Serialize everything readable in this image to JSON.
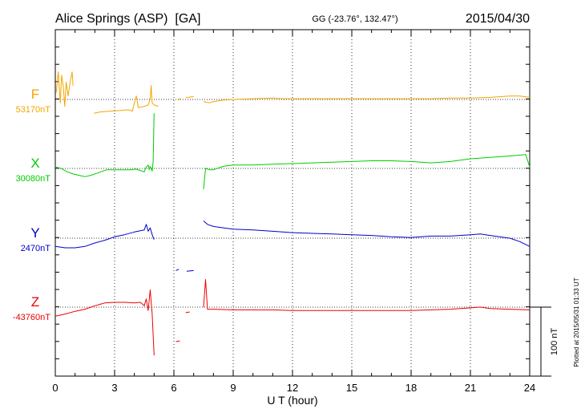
{
  "title": "Alice Springs (ASP)  [GA]",
  "coords": "GG (-23.76°, 132.47°)",
  "date": "2015/04/30",
  "plotted_note": "Plotted at 2015/05/31 01:33 UT",
  "chart_data": {
    "type": "line",
    "xlabel": "U T (hour)",
    "xlim": [
      0,
      24
    ],
    "xticks": [
      0,
      3,
      6,
      9,
      12,
      15,
      18,
      21,
      24
    ],
    "scale_bar_label": "100 nT",
    "grid": true,
    "series": [
      {
        "name": "F",
        "baseline_label": "53170nT",
        "color": "#f2a600",
        "segments": [
          [
            [
              0.05,
              10
            ],
            [
              0.15,
              40
            ],
            [
              0.25,
              -5
            ],
            [
              0.32,
              35
            ],
            [
              0.4,
              20
            ],
            [
              0.48,
              -10
            ],
            [
              0.55,
              25
            ],
            [
              0.65,
              5
            ],
            [
              0.75,
              25
            ],
            [
              0.85,
              40
            ],
            [
              0.9,
              20
            ]
          ],
          [
            [
              1.95,
              -20
            ],
            [
              2.3,
              -18
            ],
            [
              2.8,
              -17
            ],
            [
              3.3,
              -16
            ],
            [
              3.7,
              -15
            ],
            [
              3.9,
              -17
            ],
            [
              4.0,
              -5
            ],
            [
              4.1,
              5
            ],
            [
              4.2,
              -12
            ],
            [
              4.5,
              -10
            ],
            [
              4.7,
              -8
            ],
            [
              4.8,
              0
            ],
            [
              4.85,
              20
            ],
            [
              4.9,
              -5
            ],
            [
              5.0,
              -8
            ],
            [
              5.2,
              -10
            ]
          ],
          [
            [
              6.2,
              -1
            ],
            [
              6.35,
              1
            ]
          ],
          [
            [
              6.6,
              3
            ],
            [
              6.75,
              3
            ],
            [
              6.9,
              4
            ],
            [
              7.0,
              4
            ]
          ],
          [
            [
              7.5,
              -3
            ],
            [
              7.8,
              -5
            ],
            [
              8.0,
              -3
            ],
            [
              8.5,
              -1
            ],
            [
              9,
              0
            ],
            [
              10,
              1
            ],
            [
              11,
              2
            ],
            [
              11.5,
              1
            ],
            [
              12,
              1
            ],
            [
              13,
              1
            ],
            [
              14,
              1
            ],
            [
              15,
              1
            ],
            [
              16,
              1
            ],
            [
              17,
              1
            ],
            [
              18,
              1
            ],
            [
              19,
              1
            ],
            [
              20,
              2
            ],
            [
              21,
              2
            ],
            [
              22,
              3
            ],
            [
              23,
              5
            ],
            [
              23.5,
              5
            ],
            [
              24,
              3
            ]
          ]
        ]
      },
      {
        "name": "X",
        "baseline_label": "30080nT",
        "color": "#00cc00",
        "segments": [
          [
            [
              0,
              2
            ],
            [
              0.3,
              0
            ],
            [
              0.6,
              -5
            ],
            [
              0.9,
              -8
            ],
            [
              1.2,
              -10
            ],
            [
              1.5,
              -12
            ],
            [
              1.8,
              -10
            ],
            [
              2.2,
              -6
            ],
            [
              2.6,
              -2
            ],
            [
              3.0,
              -2
            ],
            [
              3.4,
              -2
            ],
            [
              3.8,
              -2
            ],
            [
              4.1,
              -1
            ],
            [
              4.3,
              -3
            ],
            [
              4.5,
              -5
            ],
            [
              4.6,
              2
            ],
            [
              4.7,
              5
            ],
            [
              4.75,
              -2
            ],
            [
              4.8,
              3
            ],
            [
              4.9,
              -4
            ],
            [
              4.95,
              10
            ],
            [
              5.0,
              80
            ]
          ],
          [
            [
              7.5,
              -30
            ],
            [
              7.6,
              0
            ],
            [
              7.8,
              -2
            ],
            [
              8.0,
              -2
            ],
            [
              8.5,
              3
            ],
            [
              9.0,
              5
            ],
            [
              10,
              5
            ],
            [
              11,
              6
            ],
            [
              12,
              7
            ],
            [
              13,
              8
            ],
            [
              14,
              9
            ],
            [
              15,
              10
            ],
            [
              16,
              11
            ],
            [
              17,
              11
            ],
            [
              18,
              10
            ],
            [
              19,
              8
            ],
            [
              20,
              10
            ],
            [
              21,
              14
            ],
            [
              22,
              16
            ],
            [
              23,
              18
            ],
            [
              23.8,
              20
            ],
            [
              24,
              2
            ]
          ]
        ]
      },
      {
        "name": "Y",
        "baseline_label": "2470nT",
        "color": "#0000cc",
        "segments": [
          [
            [
              0,
              -12
            ],
            [
              0.5,
              -14
            ],
            [
              1.0,
              -14
            ],
            [
              1.5,
              -12
            ],
            [
              2.0,
              -7
            ],
            [
              2.5,
              -3
            ],
            [
              3.0,
              2
            ],
            [
              3.5,
              5
            ],
            [
              4.0,
              9
            ],
            [
              4.5,
              12
            ],
            [
              4.6,
              20
            ],
            [
              4.7,
              10
            ],
            [
              4.8,
              15
            ],
            [
              4.9,
              5
            ],
            [
              5.0,
              -2
            ]
          ],
          [
            [
              6.1,
              -47
            ],
            [
              6.25,
              -45
            ]
          ],
          [
            [
              6.65,
              -48
            ],
            [
              7.0,
              -47
            ]
          ],
          [
            [
              7.5,
              25
            ],
            [
              7.7,
              20
            ],
            [
              8.0,
              17
            ],
            [
              8.5,
              15
            ],
            [
              9,
              13
            ],
            [
              10,
              12
            ],
            [
              11,
              10
            ],
            [
              12,
              8
            ],
            [
              13,
              7
            ],
            [
              14,
              6
            ],
            [
              15,
              5
            ],
            [
              16,
              4
            ],
            [
              17,
              2
            ],
            [
              18,
              1
            ],
            [
              18.5,
              2
            ],
            [
              19,
              3
            ],
            [
              20,
              3
            ],
            [
              21,
              5
            ],
            [
              21.5,
              6
            ],
            [
              22,
              4
            ],
            [
              23,
              0
            ],
            [
              23.5,
              -5
            ],
            [
              24,
              -12
            ]
          ]
        ]
      },
      {
        "name": "Z",
        "baseline_label": "-43760nT",
        "color": "#ee0000",
        "segments": [
          [
            [
              0,
              -13
            ],
            [
              0.5,
              -10
            ],
            [
              1.0,
              -6
            ],
            [
              1.5,
              -3
            ],
            [
              2.0,
              2
            ],
            [
              2.5,
              6
            ],
            [
              3.0,
              7
            ],
            [
              3.5,
              7
            ],
            [
              4.0,
              6
            ],
            [
              4.3,
              7
            ],
            [
              4.5,
              2
            ],
            [
              4.6,
              12
            ],
            [
              4.7,
              -5
            ],
            [
              4.8,
              25
            ],
            [
              4.9,
              -10
            ],
            [
              5.0,
              -70
            ]
          ],
          [
            [
              6.1,
              -50
            ],
            [
              6.3,
              -49
            ]
          ],
          [
            [
              6.6,
              -8
            ],
            [
              6.8,
              -7
            ]
          ],
          [
            [
              7.5,
              0
            ],
            [
              7.6,
              40
            ],
            [
              7.7,
              -3
            ],
            [
              8.0,
              -3
            ],
            [
              9,
              -4
            ],
            [
              10,
              -4
            ],
            [
              11,
              -4
            ],
            [
              12,
              -5
            ],
            [
              13,
              -5
            ],
            [
              14,
              -5
            ],
            [
              15,
              -5
            ],
            [
              16,
              -5
            ],
            [
              17,
              -5
            ],
            [
              18,
              -5
            ],
            [
              19,
              -4
            ],
            [
              20,
              -3
            ],
            [
              21,
              -1
            ],
            [
              21.5,
              0
            ],
            [
              22,
              -2
            ],
            [
              23,
              -3
            ],
            [
              24,
              -4
            ]
          ]
        ]
      }
    ]
  }
}
